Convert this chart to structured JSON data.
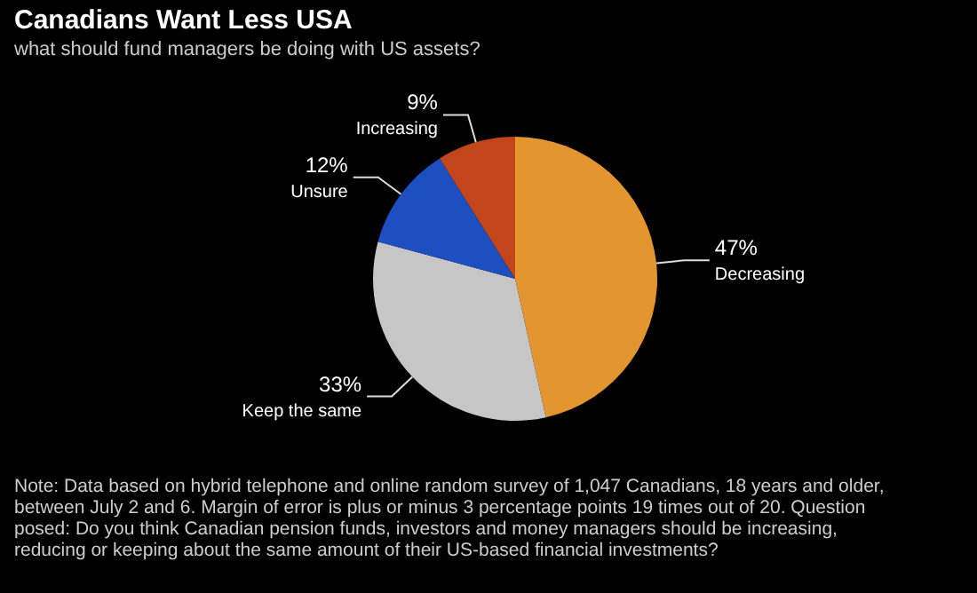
{
  "chart_data": {
    "type": "pie",
    "title": "Canadians Want Less USA",
    "subtitle": "what should fund managers be doing with US assets?",
    "categories": [
      "Decreasing",
      "Keep the same",
      "Unsure",
      "Increasing"
    ],
    "values": [
      47,
      33,
      12,
      9
    ],
    "value_labels": [
      "47%",
      "33%",
      "12%",
      "9%"
    ],
    "colors": [
      "#e39530",
      "#c6c6c6",
      "#1e4fc0",
      "#c2451c"
    ],
    "data_labels": true,
    "annotations": [
      "Note: Data based on hybrid telephone and online random survey of 1,047 Canadians, 18 years and older, between July 2 and 6. Margin of error is plus or minus 3 percentage points 19 times out of 20. Question posed: Do you think Canadian pension funds, investors and money managers should be increasing, reducing or keeping about the same amount of their US-based financial investments?"
    ]
  }
}
